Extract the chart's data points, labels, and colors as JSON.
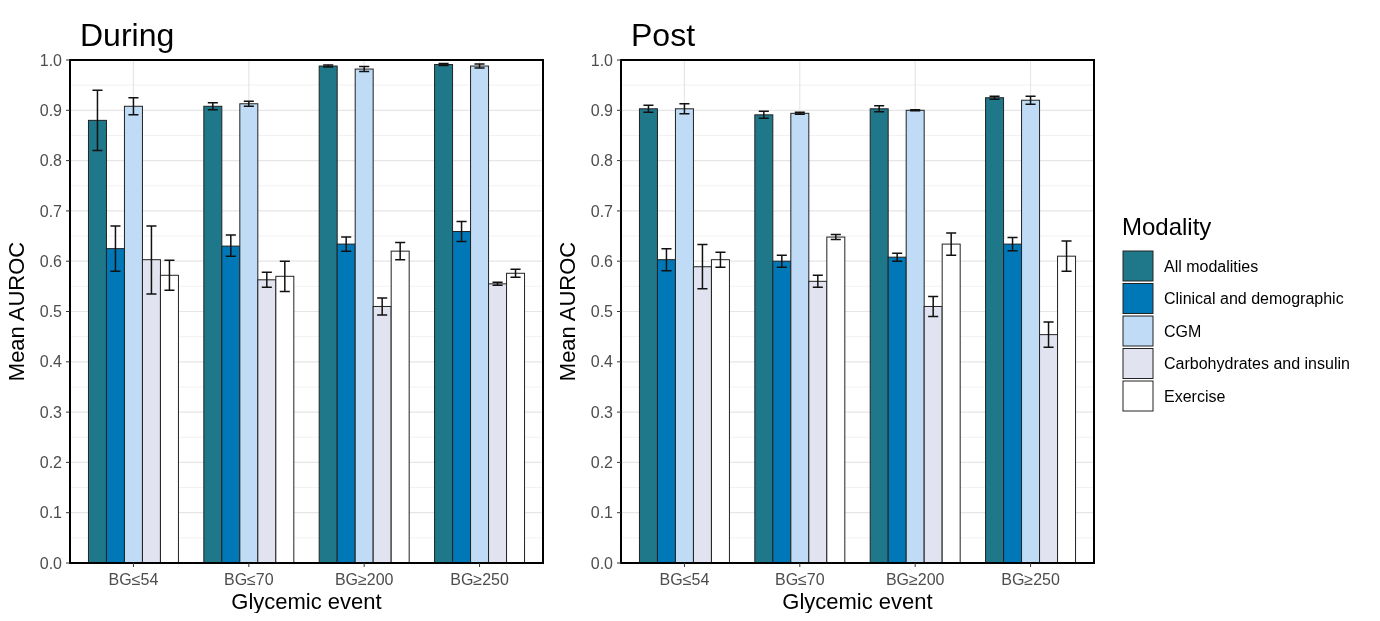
{
  "chart_data": [
    {
      "type": "bar",
      "title": "During",
      "xlabel": "Glycemic event",
      "ylabel": "Mean AUROC",
      "categories": [
        "BG≤54",
        "BG≤70",
        "BG≥200",
        "BG≥250"
      ],
      "ylim": [
        0,
        1
      ],
      "yticks": [
        {
          "value": 0,
          "label": "0.0"
        },
        {
          "value": 0.1,
          "label": "0.1"
        },
        {
          "value": 0.2,
          "label": "0.2"
        },
        {
          "value": 0.3,
          "label": "0.3"
        },
        {
          "value": 0.4,
          "label": "0.4"
        },
        {
          "value": 0.5,
          "label": "0.5"
        },
        {
          "value": 0.6,
          "label": "0.6"
        },
        {
          "value": 0.7,
          "label": "0.7"
        },
        {
          "value": 0.8,
          "label": "0.8"
        },
        {
          "value": 0.9,
          "label": "0.9"
        },
        {
          "value": 1,
          "label": "1.0"
        }
      ],
      "grid": true,
      "legend": false,
      "series": [
        {
          "color": "#1f788a",
          "values": [
            0.88,
            0.908,
            0.988,
            0.991
          ],
          "errors": [
            [
              0.82,
              0.94
            ],
            [
              0.901,
              0.915
            ],
            [
              0.986,
              0.99
            ],
            [
              0.989,
              0.993
            ]
          ]
        },
        {
          "color": "#0077b6",
          "values": [
            0.625,
            0.63,
            0.634,
            0.659
          ],
          "errors": [
            [
              0.58,
              0.67
            ],
            [
              0.61,
              0.652
            ],
            [
              0.62,
              0.648
            ],
            [
              0.639,
              0.679
            ]
          ]
        },
        {
          "color": "#bfdbf5",
          "values": [
            0.908,
            0.913,
            0.982,
            0.988
          ],
          "errors": [
            [
              0.891,
              0.925
            ],
            [
              0.908,
              0.918
            ],
            [
              0.977,
              0.987
            ],
            [
              0.984,
              0.992
            ]
          ]
        },
        {
          "color": "#e1e4f0",
          "values": [
            0.603,
            0.563,
            0.51,
            0.555
          ],
          "errors": [
            [
              0.535,
              0.67
            ],
            [
              0.548,
              0.578
            ],
            [
              0.493,
              0.527
            ],
            [
              0.552,
              0.558
            ]
          ]
        },
        {
          "color": "#ffffff",
          "values": [
            0.572,
            0.57,
            0.62,
            0.576
          ],
          "errors": [
            [
              0.542,
              0.602
            ],
            [
              0.54,
              0.6
            ],
            [
              0.603,
              0.637
            ],
            [
              0.568,
              0.584
            ]
          ]
        }
      ]
    },
    {
      "type": "bar",
      "title": "Post",
      "xlabel": "Glycemic event",
      "ylabel": "Mean AUROC",
      "legend_title": "Modality",
      "categories": [
        "BG≤54",
        "BG≤70",
        "BG≥200",
        "BG≥250"
      ],
      "ylim": [
        0,
        1
      ],
      "yticks": [
        {
          "value": 0,
          "label": "0.0"
        },
        {
          "value": 0.1,
          "label": "0.1"
        },
        {
          "value": 0.2,
          "label": "0.2"
        },
        {
          "value": 0.3,
          "label": "0.3"
        },
        {
          "value": 0.4,
          "label": "0.4"
        },
        {
          "value": 0.5,
          "label": "0.5"
        },
        {
          "value": 0.6,
          "label": "0.6"
        },
        {
          "value": 0.7,
          "label": "0.7"
        },
        {
          "value": 0.8,
          "label": "0.8"
        },
        {
          "value": 0.9,
          "label": "0.9"
        },
        {
          "value": 1,
          "label": "1.0"
        }
      ],
      "grid": true,
      "legend": "right",
      "series": [
        {
          "name": "All modalities",
          "color": "#1f788a",
          "values": [
            0.903,
            0.891,
            0.903,
            0.925
          ],
          "errors": [
            [
              0.896,
              0.91
            ],
            [
              0.884,
              0.898
            ],
            [
              0.897,
              0.909
            ],
            [
              0.922,
              0.928
            ]
          ]
        },
        {
          "name": "Clinical and demographic",
          "color": "#0077b6",
          "values": [
            0.603,
            0.6,
            0.608,
            0.634
          ],
          "errors": [
            [
              0.581,
              0.625
            ],
            [
              0.588,
              0.612
            ],
            [
              0.6,
              0.616
            ],
            [
              0.621,
              0.647
            ]
          ]
        },
        {
          "name": "CGM",
          "color": "#bfdbf5",
          "values": [
            0.903,
            0.894,
            0.9,
            0.92
          ],
          "errors": [
            [
              0.893,
              0.913
            ],
            [
              0.892,
              0.896
            ],
            [
              0.899,
              0.901
            ],
            [
              0.912,
              0.928
            ]
          ]
        },
        {
          "name": "Carbohydrates and insulin",
          "color": "#e1e4f0",
          "values": [
            0.589,
            0.56,
            0.51,
            0.454
          ],
          "errors": [
            [
              0.545,
              0.633
            ],
            [
              0.548,
              0.572
            ],
            [
              0.49,
              0.53
            ],
            [
              0.429,
              0.479
            ]
          ]
        },
        {
          "name": "Exercise",
          "color": "#ffffff",
          "values": [
            0.603,
            0.648,
            0.634,
            0.61
          ],
          "errors": [
            [
              0.588,
              0.618
            ],
            [
              0.643,
              0.653
            ],
            [
              0.612,
              0.656
            ],
            [
              0.58,
              0.64
            ]
          ]
        }
      ]
    }
  ]
}
